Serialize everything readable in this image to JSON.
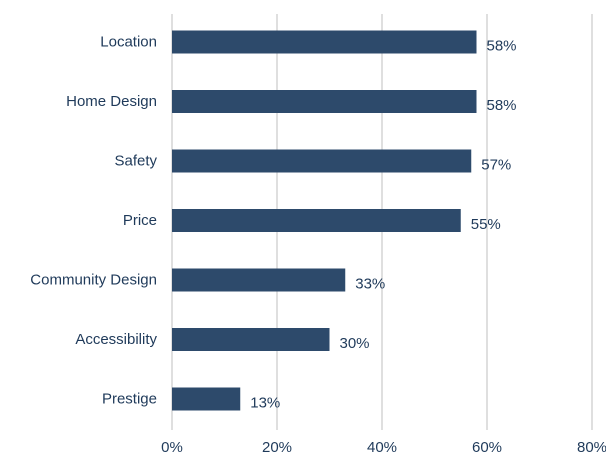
{
  "chart_data": {
    "type": "bar",
    "orientation": "horizontal",
    "categories": [
      "Location",
      "Home Design",
      "Safety",
      "Price",
      "Community Design",
      "Accessibility",
      "Prestige"
    ],
    "values": [
      58,
      58,
      57,
      55,
      33,
      30,
      13
    ],
    "value_labels": [
      "58%",
      "58%",
      "57%",
      "55%",
      "33%",
      "30%",
      "13%"
    ],
    "x_ticks": [
      "0%",
      "20%",
      "40%",
      "60%",
      "80%"
    ],
    "xlim": [
      0,
      80
    ],
    "grid": true,
    "bar_color": "#2d4a6b",
    "grid_color": "#bfbfbf",
    "text_color": "#1f3a5a",
    "title": "",
    "xlabel": "",
    "ylabel": ""
  }
}
